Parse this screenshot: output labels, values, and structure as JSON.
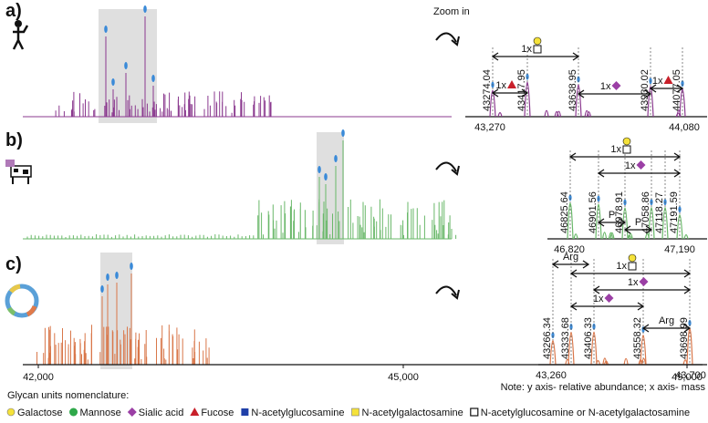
{
  "zoom_label": "Zoom in",
  "x_axis": [
    "42,000",
    "45,000",
    "49,000"
  ],
  "panels": [
    {
      "label": "a)",
      "zoom_axis": [
        "43,270",
        "44,080"
      ],
      "peaks": [
        "43274.04",
        "43417.95",
        "43638.95",
        "43930.02",
        "44077.05"
      ],
      "annotations": [
        "1x",
        "1x",
        "1x",
        "1x"
      ]
    },
    {
      "label": "b)",
      "zoom_axis": [
        "46,820",
        "47,190"
      ],
      "peaks": [
        "46825.64",
        "46901.56",
        "46978.91",
        "47058.86",
        "47118.27",
        "47191.59"
      ],
      "annotations": [
        "1x",
        "1x",
        "P",
        "P"
      ]
    },
    {
      "label": "c)",
      "zoom_axis": [
        "43,260",
        "43,700"
      ],
      "peaks": [
        "43266.34",
        "43333.68",
        "43406.33",
        "43558.32",
        "43698.99"
      ],
      "annotations": [
        "Arg",
        "1x",
        "1x",
        "1x",
        "Arg"
      ]
    }
  ],
  "legend": {
    "title": "Glycan units nomenclature:",
    "items": [
      "Galactose",
      "Mannose",
      "Sialic acid",
      "Fucose",
      "N-acetylglucosamine",
      "N-acetylgalactosamine",
      "N-acetylglucosamine or N-acetylgalactosamine"
    ]
  },
  "note": "Note: y axis- relative abundance; x axis- mass"
}
